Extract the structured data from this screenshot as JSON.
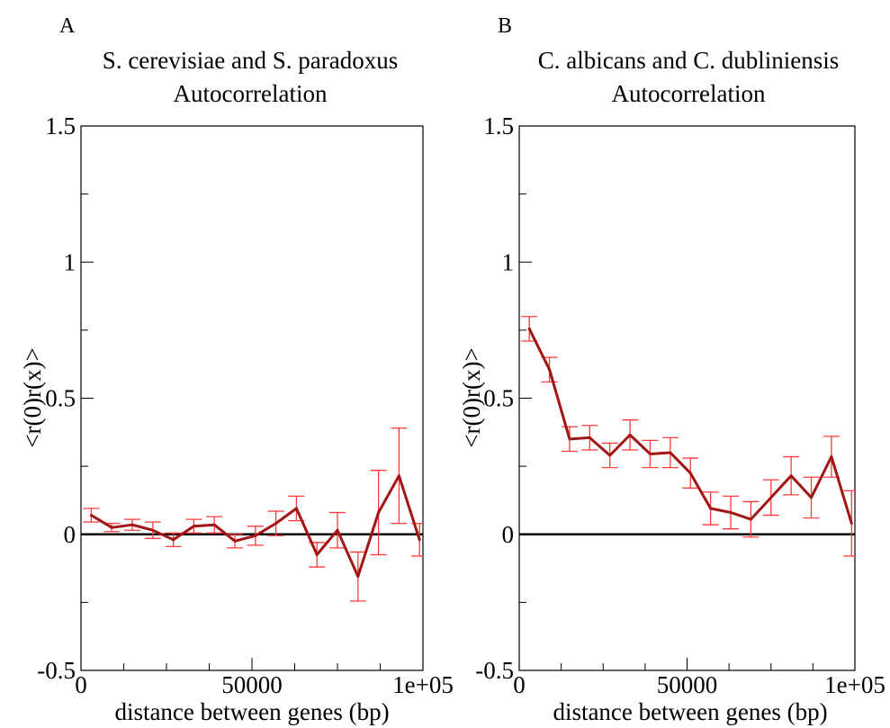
{
  "chart_data": [
    {
      "panel_label": "A",
      "type": "line",
      "title_line1": "S. cerevisiae and S. paradoxus",
      "title_line2": "Autocorrelation",
      "xlabel": "distance between genes (bp)",
      "ylabel": "<r(0)r(x)>",
      "xlim": [
        0,
        100000
      ],
      "ylim": [
        -0.5,
        1.5
      ],
      "x_ticks": [
        0,
        50000,
        100000
      ],
      "x_tick_labels": [
        "0",
        "50000",
        "1e+05"
      ],
      "y_ticks": [
        -0.5,
        0,
        0.5,
        1,
        1.5
      ],
      "y_tick_labels": [
        "-0.5",
        "0",
        "0.5",
        "1",
        "1.5"
      ],
      "zero_line": true,
      "line_color": "#a31515",
      "error_color": "#ff3b3b",
      "series": [
        {
          "x": [
            3000,
            9000,
            15000,
            21000,
            27000,
            33000,
            39000,
            45000,
            51000,
            57000,
            63000,
            69000,
            75000,
            81000,
            87000,
            93000,
            99000
          ],
          "y": [
            0.07,
            0.025,
            0.035,
            0.015,
            -0.02,
            0.03,
            0.035,
            -0.025,
            -0.005,
            0.04,
            0.095,
            -0.075,
            0.015,
            -0.155,
            0.08,
            0.215,
            -0.02
          ],
          "err": [
            0.025,
            0.015,
            0.02,
            0.03,
            0.025,
            0.025,
            0.03,
            0.025,
            0.035,
            0.045,
            0.045,
            0.045,
            0.065,
            0.09,
            0.155,
            0.175,
            0.06
          ]
        }
      ]
    },
    {
      "panel_label": "B",
      "type": "line",
      "title_line1": "C. albicans and C. dubliniensis",
      "title_line2": "Autocorrelation",
      "xlabel": "distance between genes (bp)",
      "ylabel": "<r(0)r(x)>",
      "xlim": [
        0,
        100000
      ],
      "ylim": [
        -0.5,
        1.5
      ],
      "x_ticks": [
        0,
        50000,
        100000
      ],
      "x_tick_labels": [
        "0",
        "50000",
        "1e+05"
      ],
      "y_ticks": [
        -0.5,
        0,
        0.5,
        1,
        1.5
      ],
      "y_tick_labels": [
        "-0.5",
        "0",
        "0.5",
        "1",
        "1.5"
      ],
      "zero_line": true,
      "line_color": "#a31515",
      "error_color": "#ff3b3b",
      "series": [
        {
          "x": [
            3000,
            9000,
            15000,
            21000,
            27000,
            33000,
            39000,
            45000,
            51000,
            57000,
            63000,
            69000,
            75000,
            81000,
            87000,
            93000,
            99000
          ],
          "y": [
            0.755,
            0.605,
            0.35,
            0.355,
            0.29,
            0.365,
            0.295,
            0.3,
            0.225,
            0.095,
            0.08,
            0.055,
            0.135,
            0.215,
            0.135,
            0.285,
            0.04
          ],
          "err": [
            0.045,
            0.045,
            0.045,
            0.045,
            0.045,
            0.055,
            0.05,
            0.055,
            0.055,
            0.06,
            0.06,
            0.065,
            0.065,
            0.07,
            0.075,
            0.075,
            0.12
          ]
        }
      ]
    }
  ]
}
